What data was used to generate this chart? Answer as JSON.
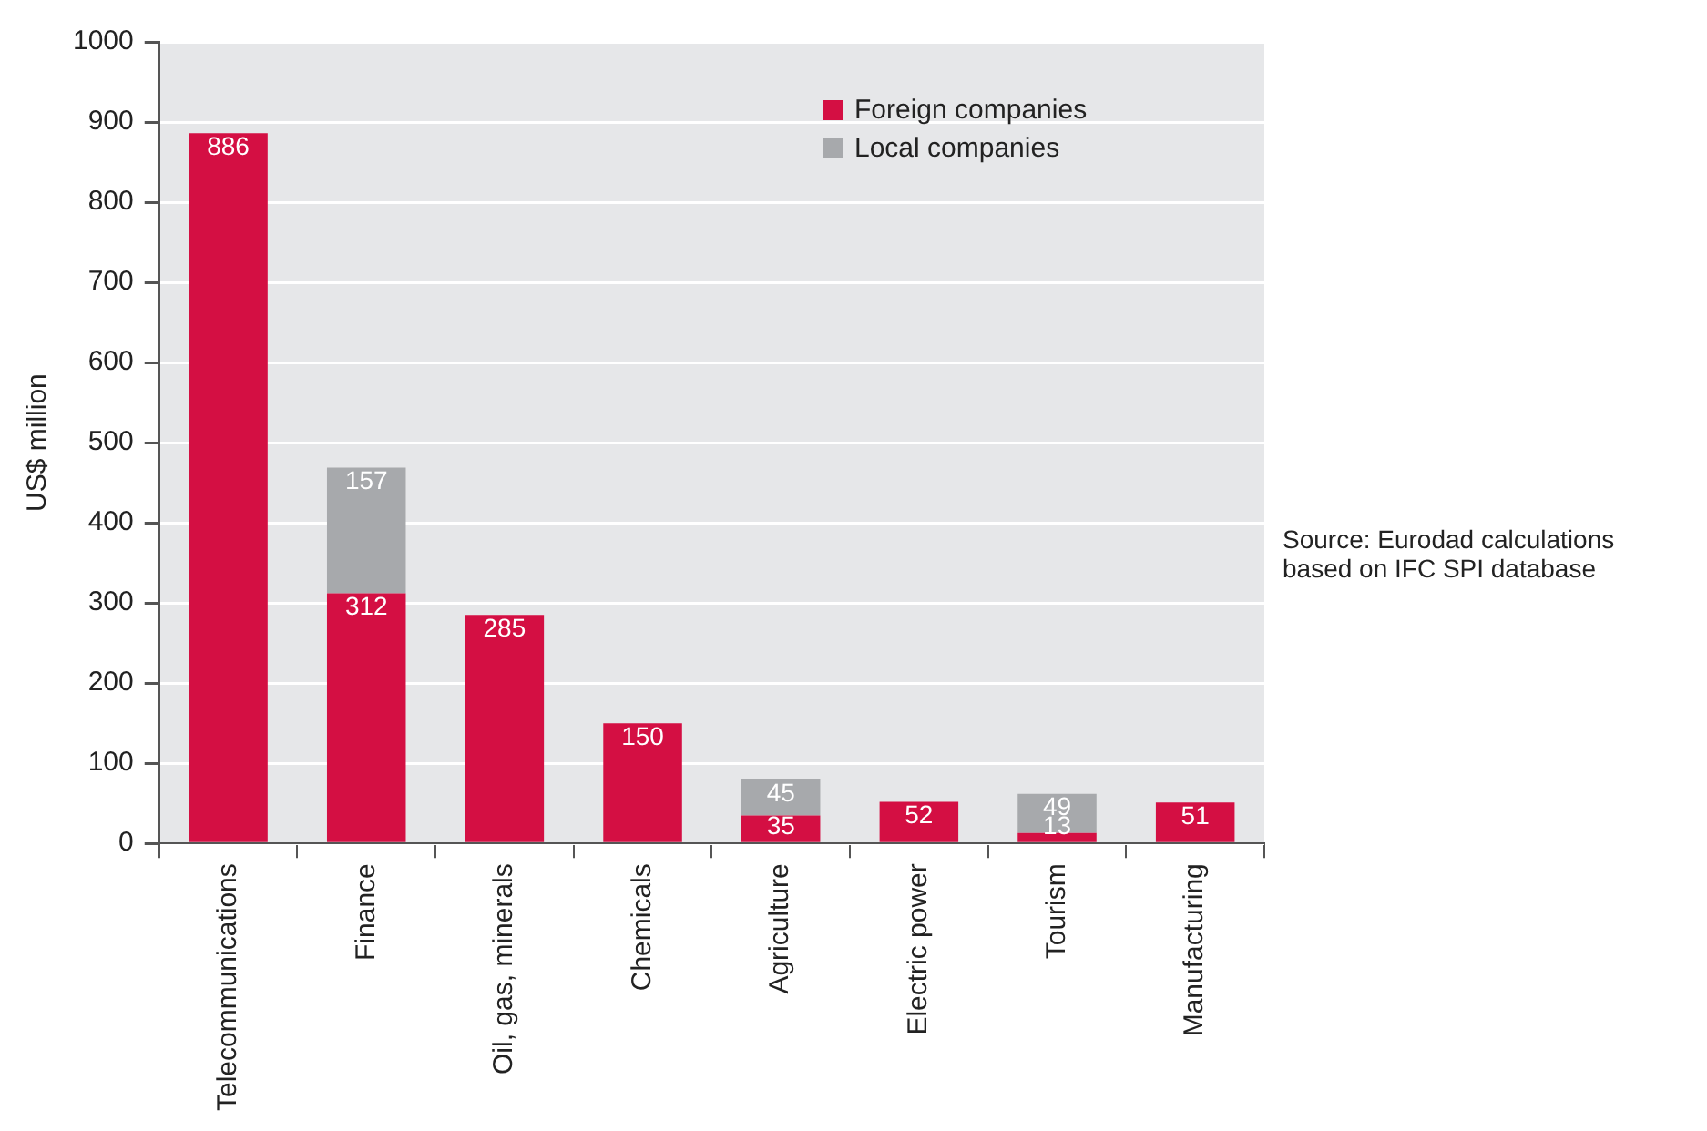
{
  "chart_data": {
    "type": "bar",
    "ylabel": "US$ million",
    "categories": [
      "Telecommunications",
      "Finance",
      "Oil, gas, minerals",
      "Chemicals",
      "Agriculture",
      "Electric power",
      "Tourism",
      "Manufacturing"
    ],
    "series": [
      {
        "name": "Foreign companies",
        "color": "#d40f43",
        "values": [
          886,
          312,
          285,
          150,
          35,
          52,
          13,
          51
        ]
      },
      {
        "name": "Local companies",
        "color": "#a7a9ac",
        "values": [
          null,
          157,
          null,
          null,
          45,
          null,
          49,
          null
        ]
      }
    ],
    "stacked": true,
    "ylim": [
      0,
      1000
    ],
    "yticks": [
      0,
      100,
      200,
      300,
      400,
      500,
      600,
      700,
      800,
      900,
      1000
    ],
    "grid": "y",
    "legend": "top right",
    "data_labels": true,
    "annotations": [
      "Source:  Eurodad  calculations based on IFC SPI database"
    ]
  }
}
